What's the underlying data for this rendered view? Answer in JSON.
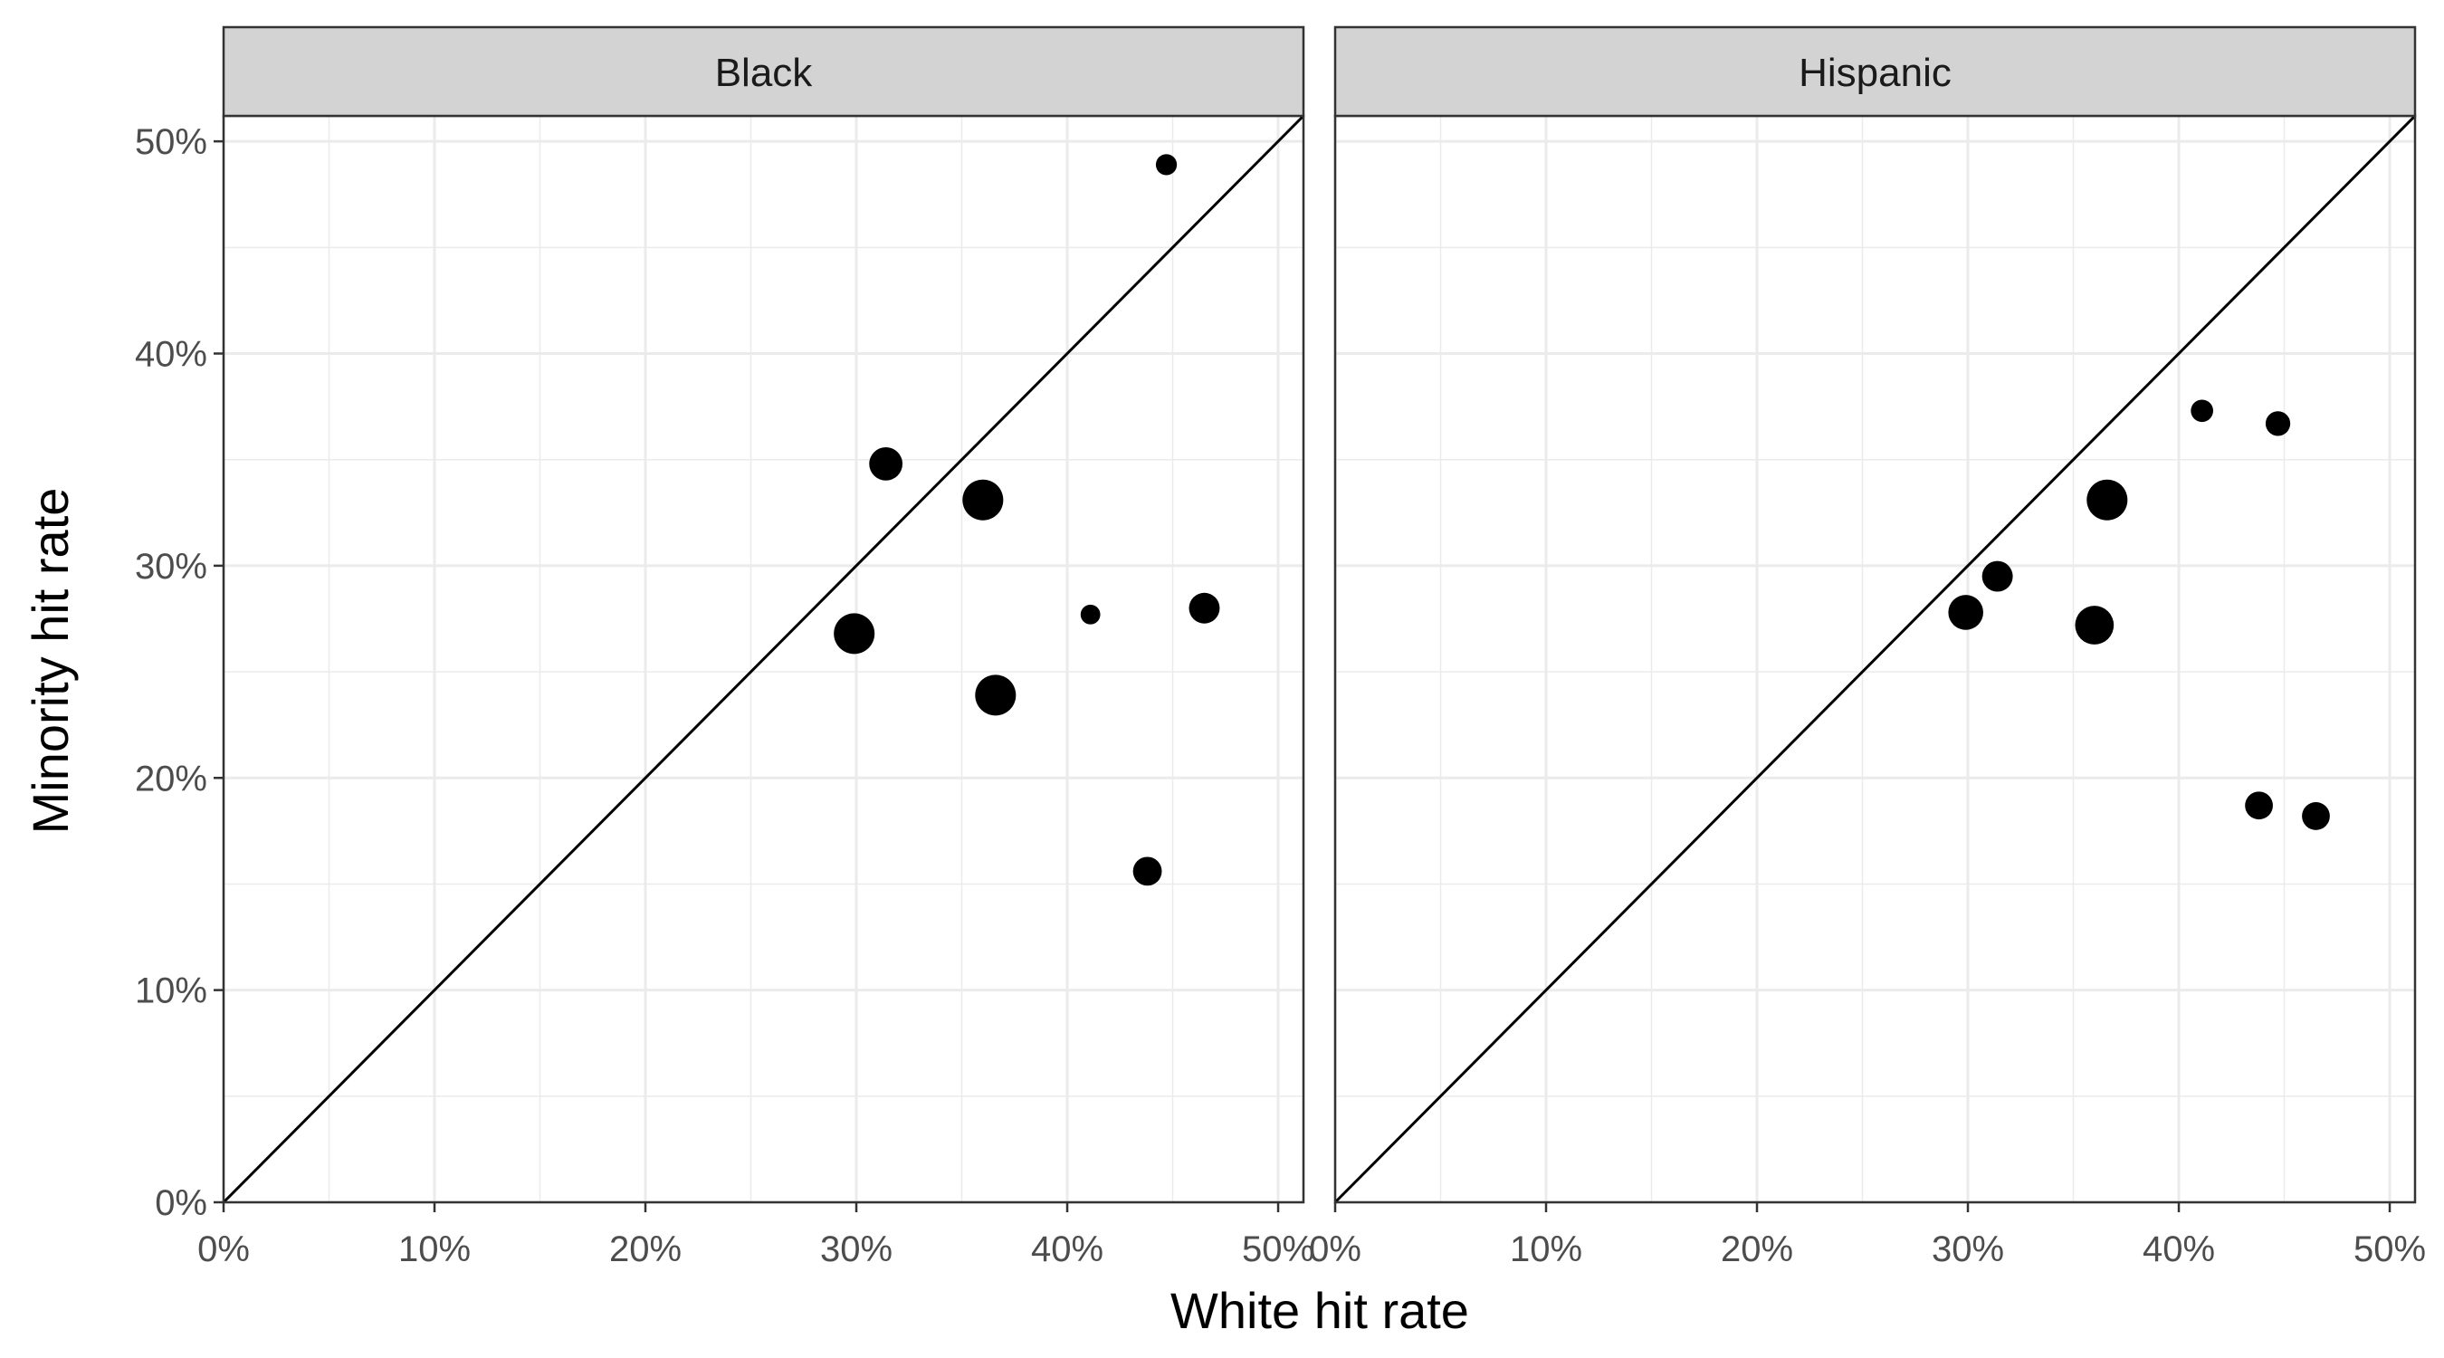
{
  "chart_data": {
    "type": "scatter",
    "xlabel": "White hit rate",
    "ylabel": "Minority hit rate",
    "xlim": [
      0,
      0.512
    ],
    "ylim": [
      0,
      0.512
    ],
    "x_ticks": [
      0,
      0.1,
      0.2,
      0.3,
      0.4,
      0.5
    ],
    "y_ticks": [
      0,
      0.1,
      0.2,
      0.3,
      0.4,
      0.5
    ],
    "x_tick_labels": [
      "0%",
      "10%",
      "20%",
      "30%",
      "40%",
      "50%"
    ],
    "y_tick_labels": [
      "0%",
      "10%",
      "20%",
      "30%",
      "40%",
      "50%"
    ],
    "grid": true,
    "reference_line": "y = x",
    "point_size": "relative weight (no legend shown)",
    "colors": {
      "points": "#000000",
      "strip": "#d3d3d3",
      "grid": "#ebebeb",
      "border": "#333333"
    },
    "panels": [
      {
        "label": "Black",
        "points": [
          {
            "x": 0.299,
            "y": 0.268,
            "size": 3
          },
          {
            "x": 0.314,
            "y": 0.348,
            "size": 2
          },
          {
            "x": 0.36,
            "y": 0.331,
            "size": 3
          },
          {
            "x": 0.366,
            "y": 0.239,
            "size": 3
          },
          {
            "x": 0.411,
            "y": 0.277,
            "size": 0.7
          },
          {
            "x": 0.438,
            "y": 0.156,
            "size": 1.5
          },
          {
            "x": 0.447,
            "y": 0.489,
            "size": 0.8
          },
          {
            "x": 0.465,
            "y": 0.28,
            "size": 1.7
          }
        ]
      },
      {
        "label": "Hispanic",
        "points": [
          {
            "x": 0.299,
            "y": 0.278,
            "size": 2.2
          },
          {
            "x": 0.314,
            "y": 0.295,
            "size": 1.7
          },
          {
            "x": 0.36,
            "y": 0.272,
            "size": 2.7
          },
          {
            "x": 0.366,
            "y": 0.331,
            "size": 3
          },
          {
            "x": 0.411,
            "y": 0.373,
            "size": 0.9
          },
          {
            "x": 0.438,
            "y": 0.187,
            "size": 1.4
          },
          {
            "x": 0.447,
            "y": 0.367,
            "size": 1.1
          },
          {
            "x": 0.465,
            "y": 0.182,
            "size": 1.4
          }
        ]
      }
    ]
  }
}
